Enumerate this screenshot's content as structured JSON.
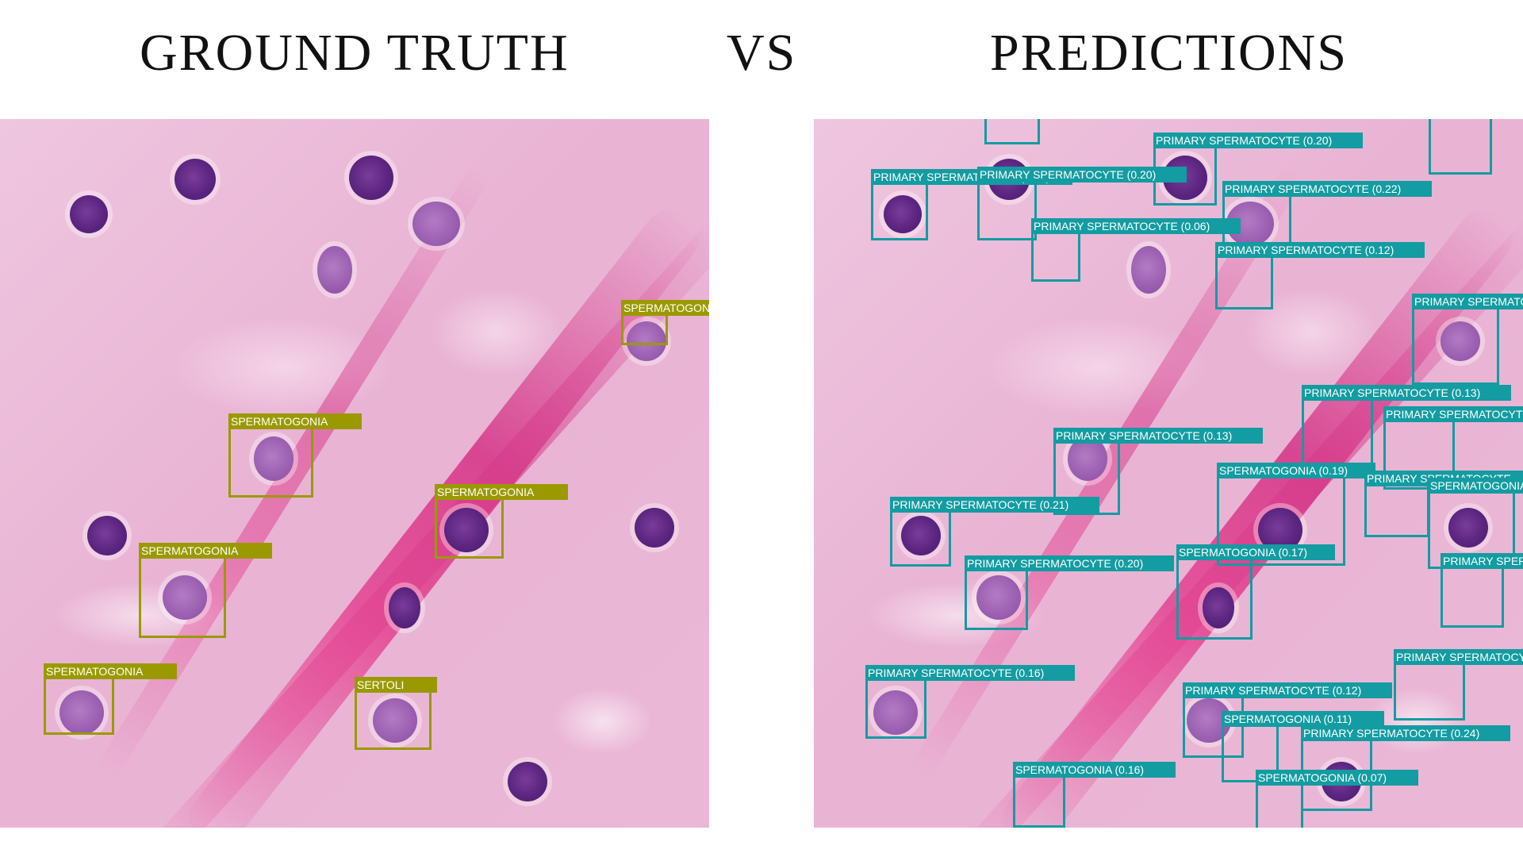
{
  "headings": {
    "left": "GROUND TRUTH",
    "middle": "VS",
    "right": "PREDICTIONS"
  },
  "colors": {
    "ground_truth_box": "#9a9a00",
    "prediction_box": "#139ca1",
    "tissue_pink": "#eab8d6",
    "collagen_fiber": "#e0448f",
    "nucleus_purple": "#5b2580"
  },
  "ground_truth": [
    {
      "label": "SPERMATOGONIA"
    },
    {
      "label": "SPERMATOGONIA"
    },
    {
      "label": "SPERMATOGONIA"
    },
    {
      "label": "SPERMATOGONIA"
    },
    {
      "label": "SPERMATOGONIA"
    },
    {
      "label": "SERTOLI"
    }
  ],
  "predictions": [
    {
      "label": "PRIMARY SPERMATOCYTE (0.20)"
    },
    {
      "label": "PRIMARY SPERMATOCYTE (0.18)"
    },
    {
      "label": "PRIMARY SPERMATOCYTE (0.20)"
    },
    {
      "label": "PRIMARY SPERMATOCYTE (0.22)"
    },
    {
      "label": "PRIMARY SPERMATOCYTE (0.06)"
    },
    {
      "label": "PRIMARY SPERMATOCYTE (0.12)"
    },
    {
      "label": "PRIMARY SPERMATOCYTE"
    },
    {
      "label": "PRIMARY SPERMATOCYTE (0.13)"
    },
    {
      "label": "PRIMARY SPERMATOCYTE"
    },
    {
      "label": "PRIMARY SPERMATOCYTE (0.13)"
    },
    {
      "label": "SPERMATOGONIA (0.19)"
    },
    {
      "label": "PRIMARY SPERMATOCYTE"
    },
    {
      "label": "SPERMATOGONIA"
    },
    {
      "label": "PRIMARY SPERMATOCYTE (0.21)"
    },
    {
      "label": "SPERMATOGONIA (0.17)"
    },
    {
      "label": "PRIMARY SPERMATOCYTE (0.20)"
    },
    {
      "label": "PRIMARY SPERMATOCYTE"
    },
    {
      "label": "PRIMARY SPERMATOCYTE"
    },
    {
      "label": "PRIMARY SPERMATOCYTE (0.16)"
    },
    {
      "label": "PRIMARY SPERMATOCYTE (0.12)"
    },
    {
      "label": "SPERMATOGONIA (0.11)"
    },
    {
      "label": "PRIMARY SPERMATOCYTE (0.24)"
    },
    {
      "label": "SPERMATOGONIA (0.16)"
    },
    {
      "label": "SPERMATOGONIA (0.07)"
    }
  ]
}
